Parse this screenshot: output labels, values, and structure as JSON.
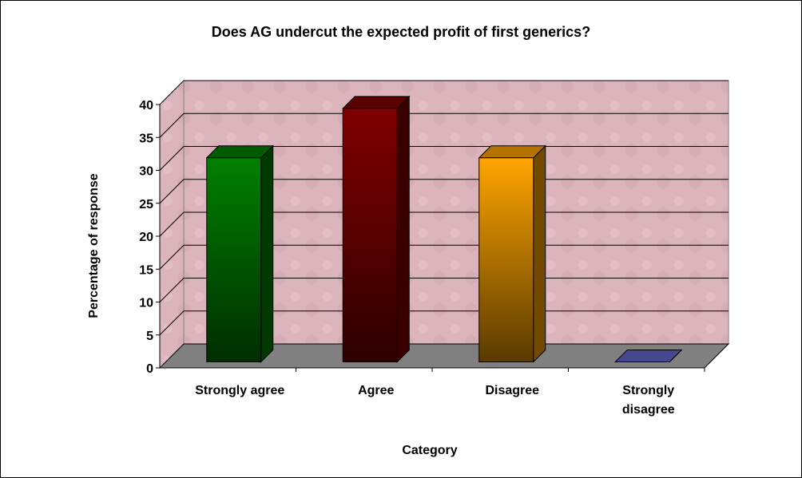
{
  "chart_data": {
    "type": "bar3d",
    "title": "Does AG undercut the expected profit of first generics?",
    "categories": [
      "Strongly agree",
      "Agree",
      "Disagree",
      "Strongly disagree"
    ],
    "values": [
      31,
      38.5,
      31,
      0
    ],
    "colors": [
      "#008000",
      "#800000",
      "#ffa500",
      "#6666cc"
    ],
    "xlabel": "Category",
    "ylabel": "Percentage of response",
    "ylim": [
      0,
      40
    ],
    "yticks": [
      0,
      5,
      10,
      15,
      20,
      25,
      30,
      35,
      40
    ],
    "grid": true
  }
}
